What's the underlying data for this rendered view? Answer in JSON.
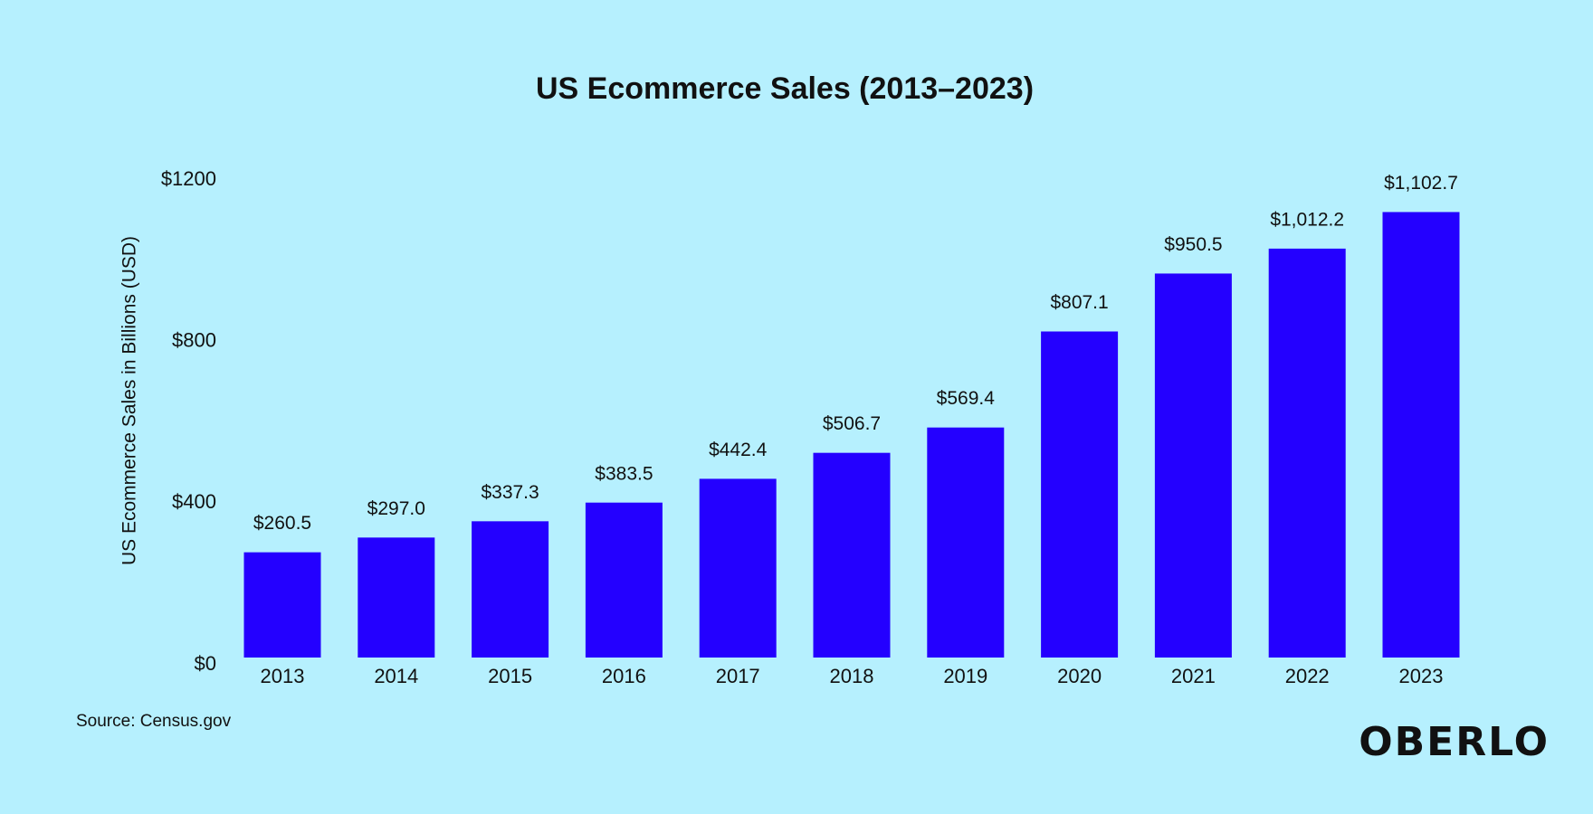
{
  "chart_data": {
    "type": "bar",
    "title": "US Ecommerce Sales (2013–2023)",
    "y_axis_label": "US Ecommerce Sales in Billions (USD)",
    "source": "Source: Census.gov",
    "logo": "OBERLO",
    "categories": [
      "2013",
      "2014",
      "2015",
      "2016",
      "2017",
      "2018",
      "2019",
      "2020",
      "2021",
      "2022",
      "2023"
    ],
    "values": [
      260.5,
      297.0,
      337.3,
      383.5,
      442.4,
      506.7,
      569.4,
      807.1,
      950.5,
      1012.2,
      1102.7
    ],
    "value_labels": [
      "$260.5",
      "$297.0",
      "$337.3",
      "$383.5",
      "$442.4",
      "$506.7",
      "$569.4",
      "$807.1",
      "$950.5",
      "$1,012.2",
      "$1,102.7"
    ],
    "color": "#2400ff",
    "ylim": [
      0,
      1200
    ],
    "yticks": [
      {
        "value": 0,
        "label": "$0"
      },
      {
        "value": 400,
        "label": "$400"
      },
      {
        "value": 800,
        "label": "$800"
      },
      {
        "value": 1200,
        "label": "$1200"
      }
    ],
    "grid": false
  }
}
